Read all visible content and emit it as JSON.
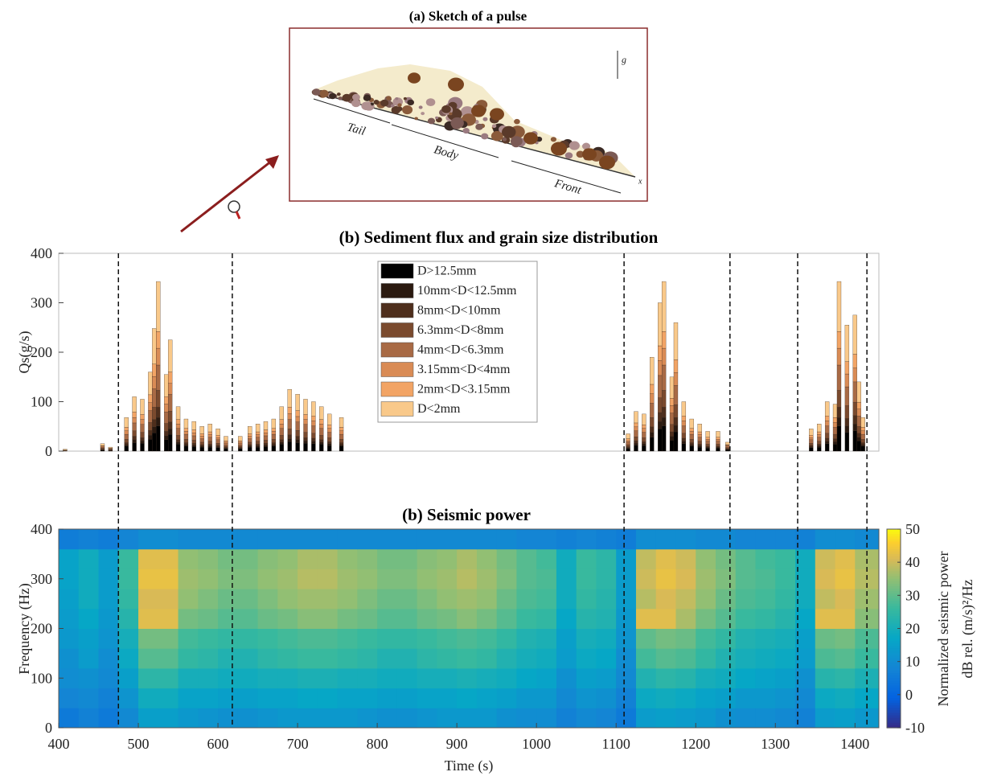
{
  "sketch": {
    "title": "(a) Sketch of a pulse",
    "labels": {
      "tail": "Tail",
      "body": "Body",
      "front": "Front",
      "g": "g",
      "x": "x"
    }
  },
  "chart_data": [
    {
      "type": "bar",
      "stacked": true,
      "title": "(b) Sediment flux and grain size distribution",
      "ylabel": "Qs(g/s)",
      "x": [
        408,
        455,
        465,
        485,
        495,
        505,
        515,
        520,
        525,
        535,
        540,
        550,
        560,
        570,
        580,
        590,
        600,
        610,
        628,
        640,
        650,
        660,
        670,
        680,
        690,
        700,
        710,
        720,
        730,
        740,
        755,
        1115,
        1125,
        1135,
        1145,
        1155,
        1160,
        1170,
        1175,
        1185,
        1195,
        1205,
        1215,
        1228,
        1240,
        1345,
        1355,
        1365,
        1375,
        1380,
        1390,
        1400,
        1405,
        1410
      ],
      "series": [
        {
          "name": "D>12.5mm",
          "color": "#000000",
          "values": [
            1,
            2,
            1,
            10,
            17,
            16,
            24,
            37,
            51,
            23,
            34,
            14,
            10,
            9,
            8,
            8,
            7,
            5,
            5,
            8,
            8,
            9,
            10,
            14,
            19,
            17,
            16,
            15,
            14,
            11,
            10,
            5,
            12,
            11,
            28,
            45,
            51,
            22,
            39,
            15,
            10,
            8,
            6,
            6,
            3,
            7,
            8,
            15,
            14,
            51,
            38,
            41,
            21,
            10
          ]
        },
        {
          "name": "10mm<D<12.5mm",
          "color": "#2b1a10",
          "values": [
            0,
            1,
            0,
            3,
            6,
            5,
            8,
            12,
            17,
            8,
            11,
            4,
            3,
            3,
            2,
            3,
            2,
            1,
            1,
            2,
            3,
            3,
            3,
            4,
            6,
            6,
            5,
            5,
            4,
            4,
            3,
            2,
            4,
            4,
            10,
            15,
            17,
            8,
            13,
            5,
            3,
            3,
            2,
            2,
            1,
            2,
            3,
            5,
            5,
            17,
            13,
            14,
            7,
            3
          ]
        },
        {
          "name": "8mm<D<10mm",
          "color": "#4e2e1c",
          "values": [
            0,
            1,
            1,
            4,
            7,
            6,
            10,
            15,
            21,
            9,
            14,
            5,
            4,
            4,
            3,
            3,
            3,
            2,
            2,
            3,
            3,
            4,
            4,
            5,
            8,
            7,
            6,
            6,
            5,
            4,
            4,
            2,
            5,
            4,
            11,
            18,
            21,
            9,
            16,
            6,
            4,
            3,
            2,
            2,
            1,
            3,
            3,
            6,
            6,
            21,
            15,
            17,
            8,
            4
          ]
        },
        {
          "name": "6.3mm<D<8mm",
          "color": "#7a4a2e",
          "values": [
            0,
            2,
            1,
            7,
            11,
            11,
            16,
            25,
            34,
            16,
            22,
            9,
            7,
            6,
            5,
            6,
            4,
            3,
            3,
            5,
            6,
            6,
            7,
            9,
            12,
            12,
            11,
            10,
            9,
            8,
            7,
            4,
            8,
            8,
            19,
            30,
            34,
            15,
            26,
            10,
            7,
            6,
            4,
            4,
            2,
            4,
            6,
            10,
            9,
            34,
            26,
            27,
            14,
            7
          ]
        },
        {
          "name": "4mm<D<6.3mm",
          "color": "#a86a45",
          "values": [
            1,
            2,
            1,
            10,
            16,
            16,
            24,
            37,
            51,
            23,
            34,
            14,
            10,
            9,
            7,
            8,
            7,
            4,
            4,
            7,
            8,
            9,
            10,
            14,
            19,
            17,
            16,
            15,
            14,
            11,
            10,
            5,
            12,
            11,
            29,
            45,
            51,
            23,
            39,
            15,
            10,
            8,
            6,
            6,
            3,
            7,
            8,
            15,
            14,
            51,
            38,
            41,
            21,
            10
          ]
        },
        {
          "name": "3.15mm<D<4mm",
          "color": "#d98b55",
          "values": [
            0,
            2,
            1,
            7,
            11,
            10,
            16,
            25,
            34,
            16,
            22,
            9,
            6,
            6,
            5,
            6,
            4,
            3,
            3,
            5,
            6,
            6,
            6,
            9,
            12,
            11,
            10,
            10,
            9,
            8,
            7,
            3,
            8,
            8,
            19,
            30,
            34,
            15,
            26,
            10,
            6,
            6,
            4,
            4,
            2,
            4,
            6,
            10,
            10,
            34,
            26,
            28,
            14,
            7
          ]
        },
        {
          "name": "2mm<D<3.15mm",
          "color": "#f2a465",
          "values": [
            0,
            1,
            1,
            7,
            11,
            10,
            16,
            25,
            34,
            15,
            23,
            9,
            6,
            6,
            5,
            5,
            5,
            3,
            3,
            5,
            5,
            6,
            6,
            9,
            13,
            12,
            10,
            10,
            9,
            7,
            7,
            4,
            8,
            7,
            19,
            30,
            34,
            15,
            26,
            10,
            6,
            5,
            4,
            4,
            1,
            5,
            5,
            10,
            10,
            34,
            25,
            28,
            14,
            7
          ]
        },
        {
          "name": "D<2mm",
          "color": "#f9c98a",
          "values": [
            2,
            4,
            2,
            20,
            31,
            31,
            46,
            72,
            101,
            45,
            65,
            26,
            19,
            17,
            15,
            16,
            13,
            9,
            9,
            15,
            16,
            17,
            19,
            26,
            36,
            33,
            31,
            29,
            26,
            22,
            20,
            10,
            23,
            22,
            55,
            87,
            101,
            43,
            75,
            29,
            19,
            16,
            12,
            12,
            5,
            13,
            16,
            29,
            27,
            101,
            74,
            79,
            41,
            20
          ]
        }
      ],
      "xlim": [
        400,
        1430
      ],
      "ylim": [
        0,
        400
      ],
      "yticks": [
        0,
        100,
        200,
        300,
        400
      ],
      "legend": "upper center",
      "vlines": [
        475,
        618,
        1110,
        1243,
        1328,
        1415
      ]
    },
    {
      "type": "heatmap",
      "title": "(b) Seismic power",
      "xlabel": "Time (s)",
      "ylabel": "Frequency (Hz)",
      "colormap": "parula",
      "xbins": [
        400,
        425,
        450,
        475,
        500,
        525,
        550,
        575,
        600,
        625,
        650,
        675,
        700,
        725,
        750,
        775,
        800,
        825,
        850,
        875,
        900,
        925,
        950,
        975,
        1000,
        1025,
        1050,
        1075,
        1100,
        1125,
        1150,
        1175,
        1200,
        1225,
        1250,
        1275,
        1300,
        1325,
        1350,
        1375,
        1400,
        1430
      ],
      "ybins": [
        0,
        40,
        80,
        120,
        160,
        200,
        240,
        280,
        320,
        360,
        400
      ],
      "values": [
        [
          5,
          7,
          5,
          9,
          15,
          15,
          13,
          12,
          11,
          11,
          12,
          13,
          13,
          13,
          13,
          12,
          11,
          11,
          12,
          13,
          13,
          13,
          11,
          10,
          10,
          7,
          9,
          8,
          5,
          14,
          15,
          14,
          13,
          11,
          10,
          10,
          9,
          7,
          14,
          15,
          13
        ],
        [
          8,
          9,
          7,
          12,
          19,
          19,
          16,
          16,
          15,
          15,
          16,
          16,
          17,
          17,
          16,
          16,
          15,
          15,
          16,
          16,
          17,
          16,
          15,
          13,
          13,
          9,
          12,
          11,
          7,
          18,
          19,
          18,
          16,
          15,
          13,
          13,
          12,
          9,
          18,
          19,
          17
        ],
        [
          10,
          11,
          9,
          15,
          24,
          24,
          20,
          20,
          19,
          19,
          20,
          20,
          21,
          21,
          20,
          20,
          19,
          19,
          20,
          20,
          21,
          20,
          19,
          17,
          16,
          11,
          15,
          14,
          9,
          22,
          24,
          23,
          20,
          19,
          17,
          16,
          15,
          11,
          23,
          24,
          21
        ],
        [
          11,
          14,
          10,
          18,
          29,
          29,
          25,
          24,
          22,
          22,
          24,
          25,
          26,
          26,
          25,
          24,
          22,
          22,
          24,
          25,
          26,
          25,
          22,
          20,
          19,
          14,
          18,
          17,
          10,
          27,
          29,
          28,
          25,
          22,
          20,
          19,
          18,
          14,
          28,
          29,
          26
        ],
        [
          13,
          15,
          12,
          20,
          32,
          32,
          27,
          26,
          25,
          25,
          26,
          27,
          28,
          28,
          27,
          26,
          25,
          25,
          26,
          27,
          28,
          27,
          25,
          22,
          21,
          15,
          20,
          19,
          12,
          30,
          32,
          31,
          27,
          25,
          22,
          21,
          20,
          15,
          31,
          32,
          28
        ],
        [
          14,
          17,
          13,
          23,
          42,
          42,
          32,
          31,
          29,
          29,
          31,
          32,
          34,
          34,
          32,
          31,
          29,
          29,
          31,
          32,
          34,
          32,
          29,
          26,
          25,
          17,
          23,
          22,
          13,
          42,
          42,
          37,
          32,
          29,
          26,
          25,
          23,
          17,
          42,
          42,
          34
        ],
        [
          15,
          19,
          14,
          25,
          41,
          41,
          35,
          33,
          31,
          31,
          33,
          35,
          36,
          36,
          35,
          33,
          31,
          31,
          33,
          35,
          36,
          35,
          31,
          28,
          27,
          19,
          25,
          23,
          14,
          38,
          41,
          39,
          35,
          31,
          28,
          27,
          25,
          19,
          39,
          41,
          36
        ],
        [
          16,
          19,
          14,
          26,
          43,
          43,
          36,
          35,
          33,
          33,
          35,
          36,
          38,
          38,
          36,
          35,
          33,
          33,
          35,
          36,
          38,
          36,
          33,
          29,
          28,
          19,
          26,
          24,
          14,
          40,
          43,
          41,
          36,
          33,
          29,
          28,
          26,
          19,
          41,
          43,
          38
        ],
        [
          16,
          19,
          14,
          26,
          42,
          42,
          35,
          34,
          32,
          32,
          34,
          35,
          37,
          37,
          35,
          34,
          32,
          32,
          34,
          35,
          37,
          35,
          32,
          29,
          27,
          19,
          26,
          24,
          14,
          39,
          42,
          40,
          35,
          32,
          29,
          27,
          26,
          19,
          40,
          42,
          37
        ],
        [
          6,
          7,
          6,
          8,
          10,
          10,
          9,
          9,
          9,
          9,
          9,
          9,
          9,
          9,
          9,
          9,
          9,
          9,
          9,
          9,
          9,
          9,
          9,
          8,
          8,
          7,
          8,
          7,
          6,
          10,
          10,
          10,
          9,
          9,
          8,
          8,
          8,
          7,
          10,
          10,
          9
        ]
      ],
      "xlim": [
        400,
        1430
      ],
      "ylim": [
        0,
        400
      ],
      "xticks": [
        400,
        500,
        600,
        700,
        800,
        900,
        1000,
        1100,
        1200,
        1300,
        1400
      ],
      "yticks": [
        0,
        100,
        200,
        300,
        400
      ],
      "colorbar": {
        "label": [
          "Normalized seismic power",
          "dB rel. (m/s)²/Hz"
        ],
        "clim": [
          -10,
          50
        ],
        "ticks": [
          -10,
          0,
          10,
          20,
          30,
          40,
          50
        ]
      }
    }
  ]
}
